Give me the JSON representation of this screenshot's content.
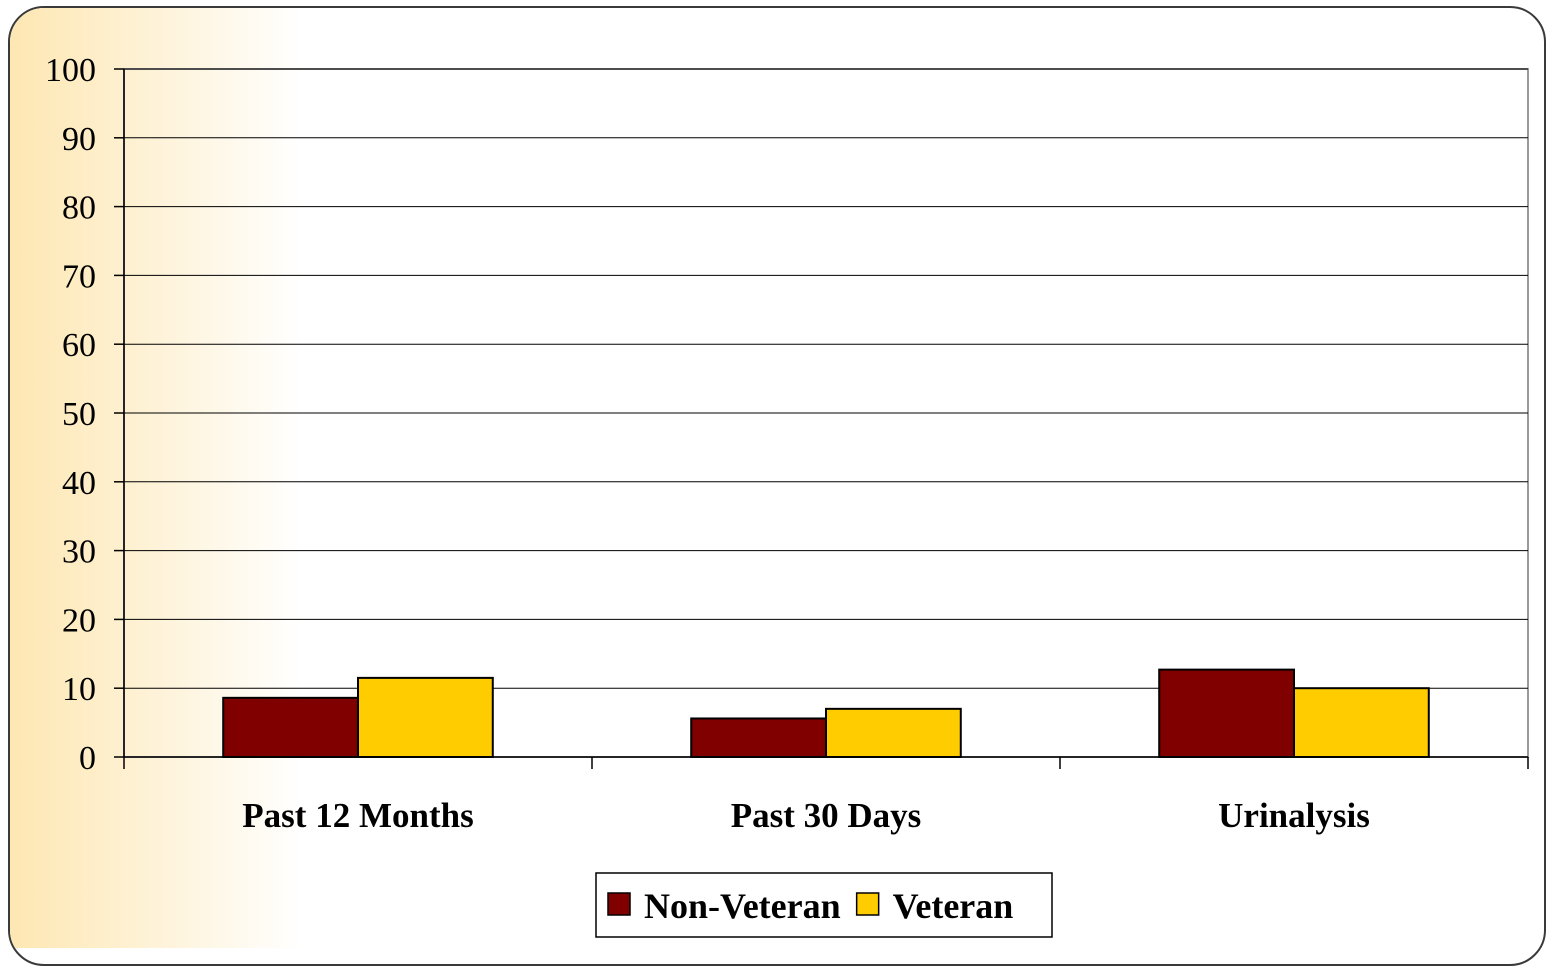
{
  "chart_data": {
    "type": "bar",
    "title": "",
    "xlabel": "",
    "ylabel": "",
    "ylim": [
      0,
      100
    ],
    "yticks": [
      0,
      10,
      20,
      30,
      40,
      50,
      60,
      70,
      80,
      90,
      100
    ],
    "grid": true,
    "legend_position": "bottom",
    "categories": [
      "Past 12 Months",
      "Past 30 Days",
      "Urinalysis"
    ],
    "series": [
      {
        "name": "Non-Veteran",
        "color": "#800000",
        "values": [
          8.6,
          5.6,
          12.7
        ]
      },
      {
        "name": "Veteran",
        "color": "#FFCC00",
        "values": [
          11.5,
          7.0,
          10.0
        ]
      }
    ]
  }
}
